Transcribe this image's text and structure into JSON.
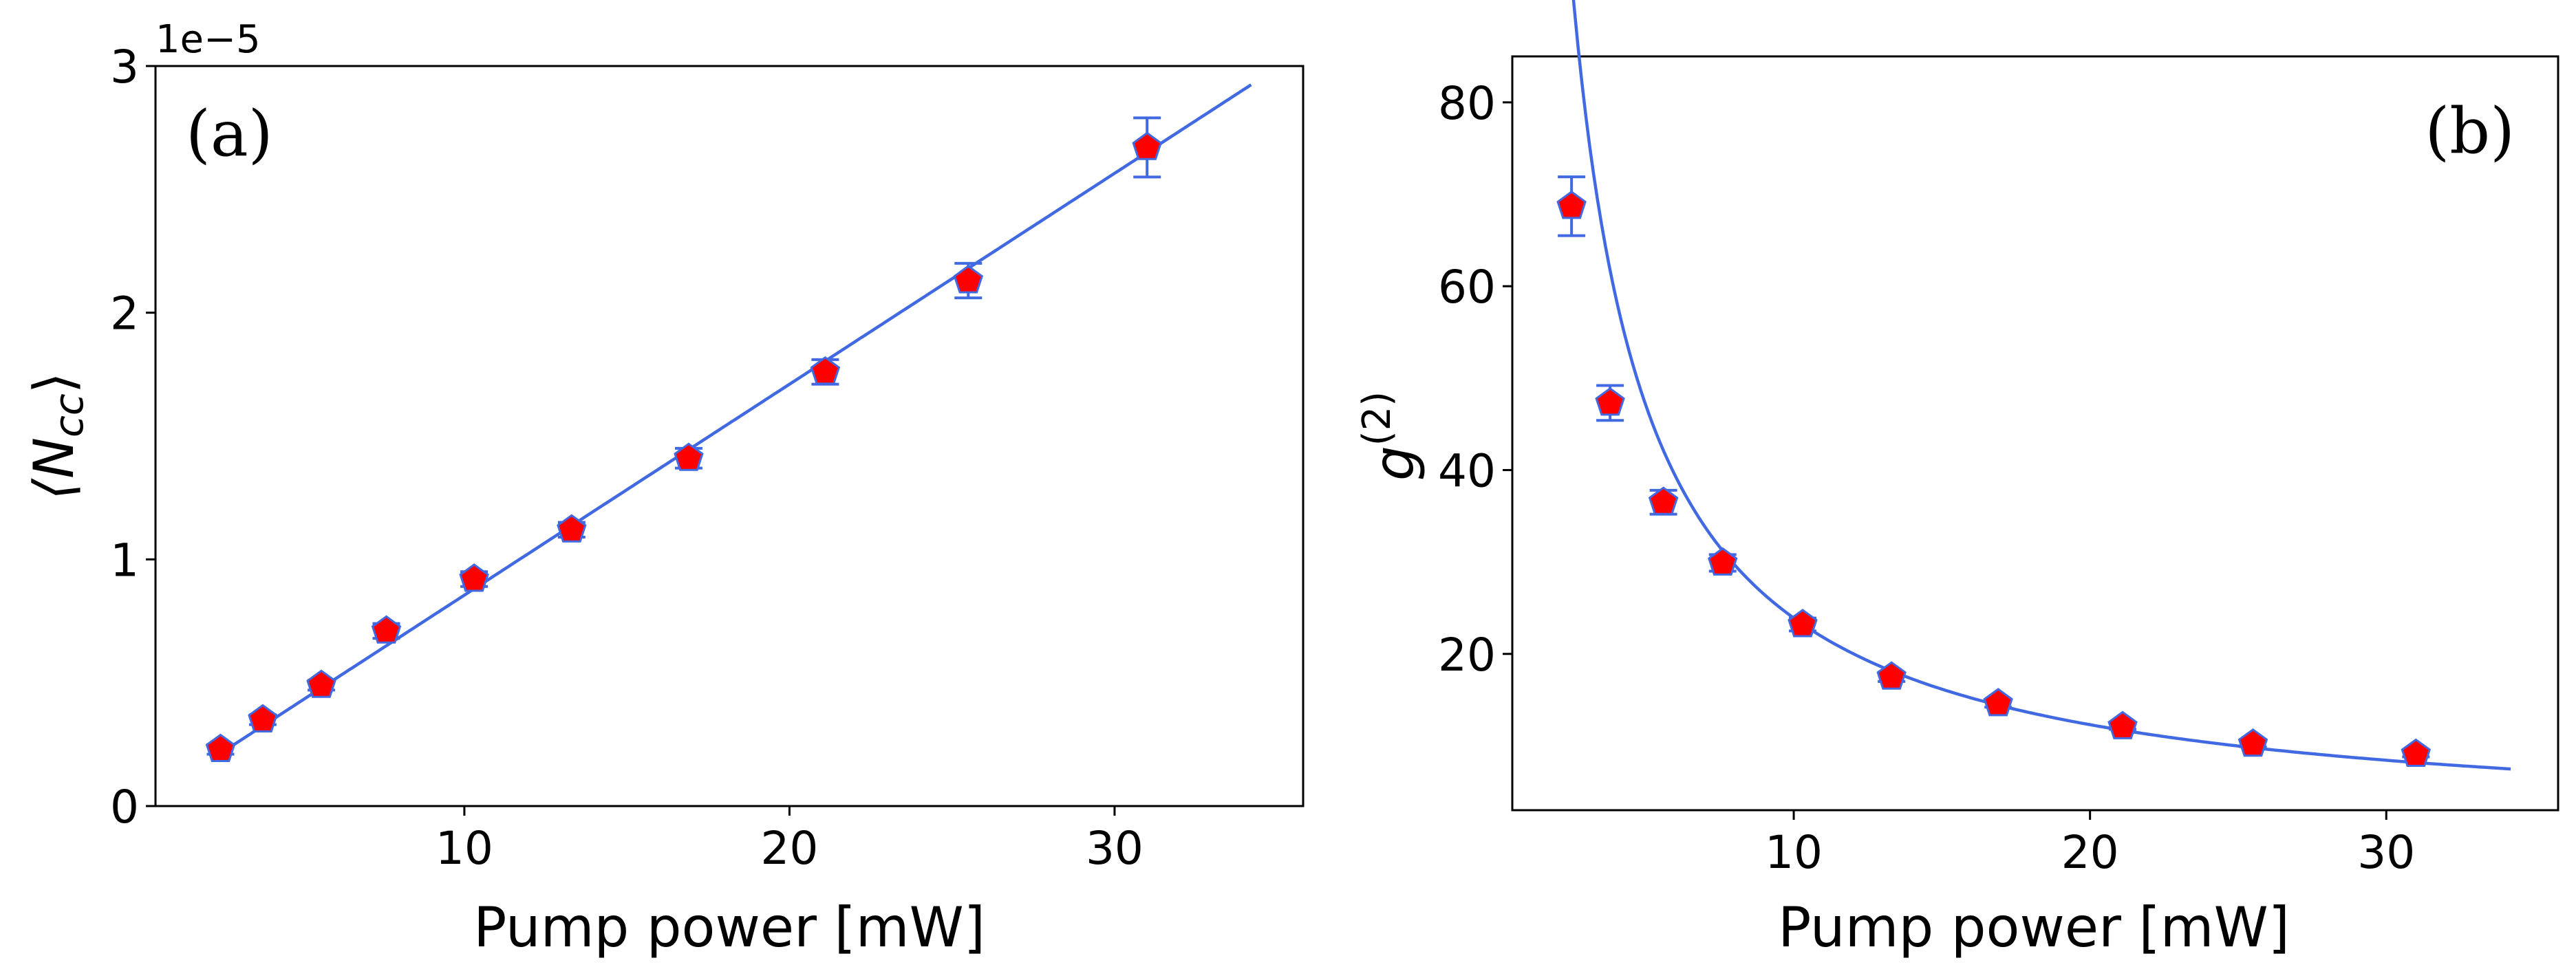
{
  "colors": {
    "line": "#4169e1",
    "marker_fill": "#ff0000",
    "marker_edge": "#4169e1",
    "errorbar": "#4169e1"
  },
  "chart_data": [
    {
      "type": "scatter",
      "panel_label": "(a)",
      "xlabel": "Pump power [mW]",
      "ylabel_main": "⟨N",
      "ylabel_sub": "cc",
      "ylabel_close": "⟩",
      "offset_label": "1e−5",
      "xlim": [
        0.5,
        35.8
      ],
      "ylim": [
        0,
        3
      ],
      "xticks": [
        10,
        20,
        30
      ],
      "xtick_labels": [
        "10",
        "20",
        "30"
      ],
      "yticks": [
        0,
        1,
        2,
        3
      ],
      "ytick_labels": [
        "0",
        "1",
        "2",
        "3"
      ],
      "series": [
        {
          "name": "data",
          "x": [
            2.5,
            3.8,
            5.6,
            7.6,
            10.3,
            13.3,
            16.9,
            21.1,
            25.5,
            31.0
          ],
          "y": [
            0.23,
            0.35,
            0.49,
            0.71,
            0.92,
            1.12,
            1.41,
            1.76,
            2.13,
            2.67
          ],
          "yerr": [
            0.02,
            0.02,
            0.02,
            0.03,
            0.03,
            0.03,
            0.04,
            0.05,
            0.07,
            0.12
          ]
        },
        {
          "name": "fit",
          "type": "line",
          "model": "linear",
          "slope": 0.0855,
          "intercept": 0.0,
          "x_range": [
            2.5,
            34.2
          ]
        }
      ]
    },
    {
      "type": "scatter",
      "panel_label": "(b)",
      "xlabel": "Pump power [mW]",
      "ylabel_main": "g",
      "ylabel_sup": "(2)",
      "xlim": [
        0.5,
        35.8
      ],
      "ylim": [
        3,
        85
      ],
      "xticks": [
        10,
        20,
        30
      ],
      "xtick_labels": [
        "10",
        "20",
        "30"
      ],
      "yticks": [
        20,
        40,
        60,
        80
      ],
      "ytick_labels": [
        "20",
        "40",
        "60",
        "80"
      ],
      "series": [
        {
          "name": "data",
          "x": [
            2.5,
            3.8,
            5.6,
            7.6,
            10.3,
            13.3,
            16.9,
            21.1,
            25.5,
            31.0
          ],
          "y": [
            68.7,
            47.3,
            36.5,
            29.9,
            23.2,
            17.5,
            14.6,
            12.1,
            10.2,
            9.1
          ],
          "yerr": [
            3.2,
            1.9,
            1.3,
            0.9,
            0.7,
            0.5,
            0.4,
            0.3,
            0.3,
            0.3
          ]
        },
        {
          "name": "fit",
          "type": "line",
          "model": "inverse",
          "a": 232,
          "b": 0.7,
          "x_range": [
            2.45,
            34.2
          ]
        }
      ]
    }
  ]
}
